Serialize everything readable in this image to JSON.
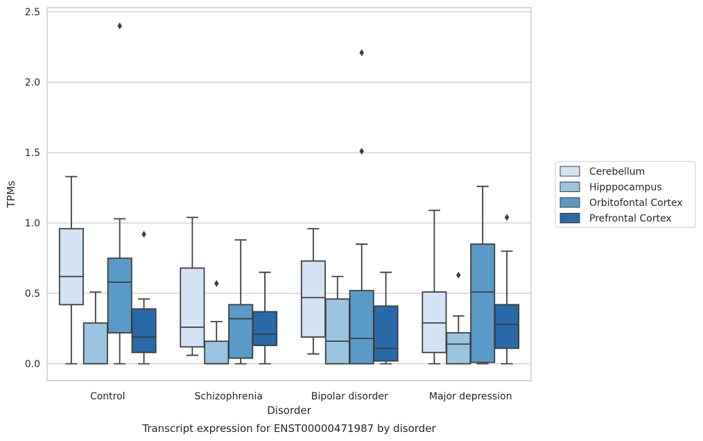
{
  "chart_data": {
    "type": "box",
    "title": "",
    "caption": "Transcript expression for ENST00000471987 by disorder",
    "xlabel": "Disorder",
    "ylabel": "TPMs",
    "ylim": [
      -0.12,
      2.53
    ],
    "yticks": [
      "0.0",
      "0.5",
      "1.0",
      "1.5",
      "2.0",
      "2.5"
    ],
    "grid": true,
    "legend_position": "right",
    "categories": [
      "Control",
      "Schizophrenia",
      "Bipolar disorder",
      "Major depression"
    ],
    "series": [
      {
        "name": "Cerebellum",
        "color": "#d3e3f3",
        "boxes": [
          {
            "whislo": 0.0,
            "q1": 0.42,
            "med": 0.62,
            "q3": 0.96,
            "whishi": 1.33,
            "fliers": []
          },
          {
            "whislo": 0.06,
            "q1": 0.12,
            "med": 0.26,
            "q3": 0.68,
            "whishi": 1.04,
            "fliers": []
          },
          {
            "whislo": 0.07,
            "q1": 0.19,
            "med": 0.47,
            "q3": 0.73,
            "whishi": 0.96,
            "fliers": []
          },
          {
            "whislo": 0.0,
            "q1": 0.08,
            "med": 0.29,
            "q3": 0.51,
            "whishi": 1.09,
            "fliers": []
          }
        ]
      },
      {
        "name": "Hipppocampus",
        "color": "#9ac4e0",
        "boxes": [
          {
            "whislo": 0.0,
            "q1": 0.0,
            "med": 0.0,
            "q3": 0.29,
            "whishi": 0.51,
            "fliers": []
          },
          {
            "whislo": 0.0,
            "q1": 0.0,
            "med": 0.0,
            "q3": 0.16,
            "whishi": 0.3,
            "fliers": [
              0.57
            ]
          },
          {
            "whislo": 0.0,
            "q1": 0.0,
            "med": 0.16,
            "q3": 0.46,
            "whishi": 0.62,
            "fliers": []
          },
          {
            "whislo": 0.0,
            "q1": 0.0,
            "med": 0.14,
            "q3": 0.22,
            "whishi": 0.34,
            "fliers": [
              0.63
            ]
          }
        ]
      },
      {
        "name": "Orbitofontal Cortex",
        "color": "#5a9ac8",
        "boxes": [
          {
            "whislo": 0.0,
            "q1": 0.22,
            "med": 0.58,
            "q3": 0.75,
            "whishi": 1.03,
            "fliers": [
              2.4
            ]
          },
          {
            "whislo": 0.0,
            "q1": 0.04,
            "med": 0.32,
            "q3": 0.42,
            "whishi": 0.88,
            "fliers": []
          },
          {
            "whislo": 0.0,
            "q1": 0.0,
            "med": 0.18,
            "q3": 0.52,
            "whishi": 0.85,
            "fliers": [
              1.51,
              2.21
            ]
          },
          {
            "whislo": 0.0,
            "q1": 0.01,
            "med": 0.51,
            "q3": 0.85,
            "whishi": 1.26,
            "fliers": []
          }
        ]
      },
      {
        "name": "Prefrontal Cortex",
        "color": "#2a6aa8",
        "boxes": [
          {
            "whislo": 0.0,
            "q1": 0.08,
            "med": 0.19,
            "q3": 0.39,
            "whishi": 0.46,
            "fliers": [
              0.92
            ]
          },
          {
            "whislo": 0.0,
            "q1": 0.13,
            "med": 0.21,
            "q3": 0.37,
            "whishi": 0.65,
            "fliers": []
          },
          {
            "whislo": 0.0,
            "q1": 0.02,
            "med": 0.11,
            "q3": 0.41,
            "whishi": 0.65,
            "fliers": []
          },
          {
            "whislo": 0.0,
            "q1": 0.11,
            "med": 0.28,
            "q3": 0.42,
            "whishi": 0.8,
            "fliers": [
              1.04
            ]
          }
        ]
      }
    ]
  }
}
